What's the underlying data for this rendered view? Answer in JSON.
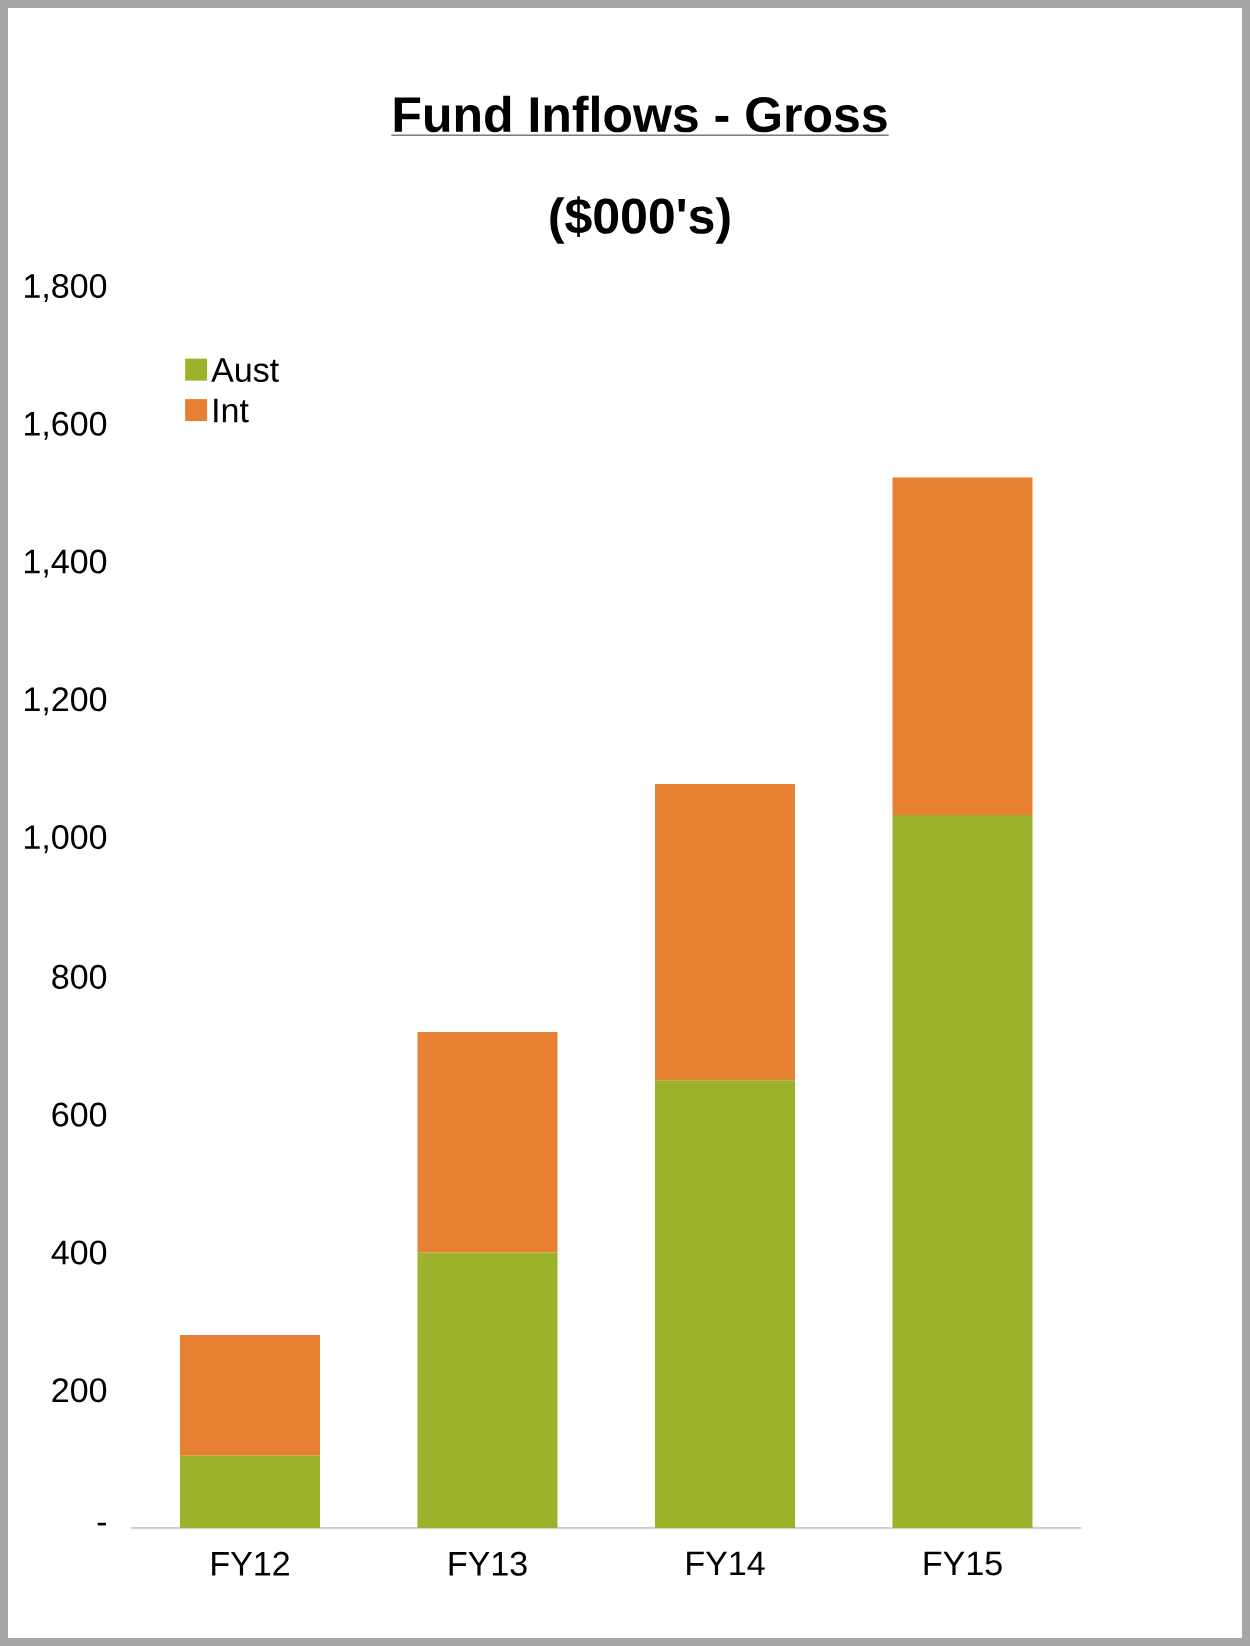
{
  "chart_data": {
    "type": "bar",
    "title": "Fund Inflows - Gross",
    "subtitle": "($000's)",
    "stacked": true,
    "categories": [
      "FY12",
      "FY13",
      "FY14",
      "FY15"
    ],
    "series": [
      {
        "name": "Aust",
        "color": "#9bb22a",
        "values": [
          105,
          400,
          650,
          1035
        ]
      },
      {
        "name": "Int",
        "color": "#e88033",
        "values": [
          175,
          320,
          430,
          490
        ]
      }
    ],
    "ylim": [
      0,
      1800
    ],
    "yticks": [
      {
        "value": 0,
        "label": "-"
      },
      {
        "value": 200,
        "label": "200"
      },
      {
        "value": 400,
        "label": "400"
      },
      {
        "value": 600,
        "label": "600"
      },
      {
        "value": 800,
        "label": "800"
      },
      {
        "value": 1000,
        "label": "1,000"
      },
      {
        "value": 1200,
        "label": "1,200"
      },
      {
        "value": 1400,
        "label": "1,400"
      },
      {
        "value": 1600,
        "label": "1,600"
      },
      {
        "value": 1800,
        "label": "1,800"
      }
    ],
    "grid": false,
    "legend": "top left"
  }
}
